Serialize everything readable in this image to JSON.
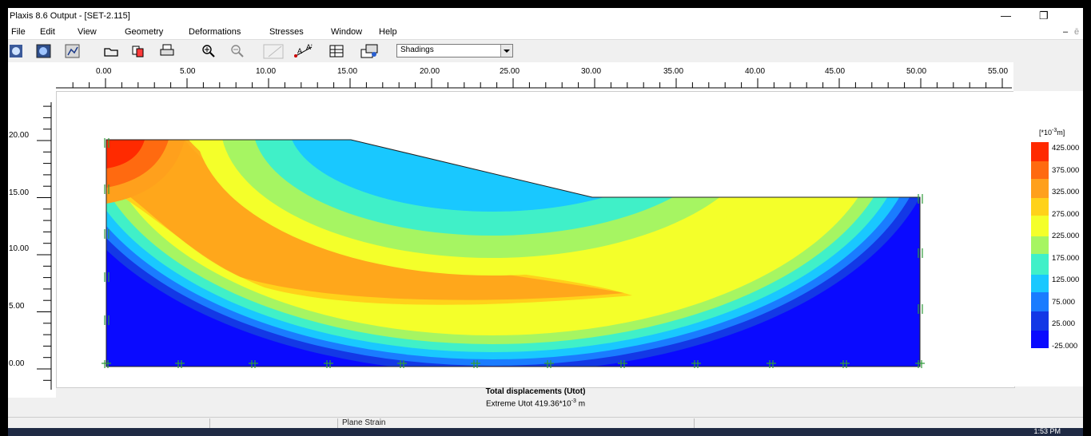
{
  "window": {
    "title": "Plaxis 8.6 Output - [SET-2.115]",
    "minimize": "—",
    "restore": "❐",
    "inner_minimize": "–",
    "inner_restore": "ē"
  },
  "menu": [
    "File",
    "Edit",
    "View",
    "Geometry",
    "Deformations",
    "Stresses",
    "Window",
    "Help"
  ],
  "toolbar": {
    "display_mode": "Shadings"
  },
  "ruler": {
    "x_labels": [
      "0.00",
      "5.00",
      "10.00",
      "15.00",
      "20.00",
      "25.00",
      "30.00",
      "35.00",
      "40.00",
      "45.00",
      "50.00",
      "55.00"
    ],
    "y_labels": [
      "20.00",
      "15.00",
      "10.00",
      "5.00",
      "0.00"
    ]
  },
  "legend": {
    "unit_prefix": "[*10",
    "unit_exp": "-3",
    "unit_suffix": "m]",
    "labels": [
      "425.000",
      "375.000",
      "325.000",
      "275.000",
      "225.000",
      "175.000",
      "125.000",
      "75.000",
      "25.000",
      "-25.000"
    ],
    "colors": [
      "#ff2a00",
      "#ff6a10",
      "#ffa01c",
      "#ffd21a",
      "#f4ff2a",
      "#a6f562",
      "#40f0c8",
      "#19c8ff",
      "#1a7cff",
      "#1338e6",
      "#0a0aff"
    ]
  },
  "caption": {
    "title": "Total displacements (Utot)",
    "extreme_prefix": "Extreme Utot 419.36*10",
    "extreme_exp": "-3",
    "extreme_suffix": " m"
  },
  "status": {
    "mode": "Plane Strain"
  },
  "taskbar": {
    "clock": "1:53 PM"
  }
}
